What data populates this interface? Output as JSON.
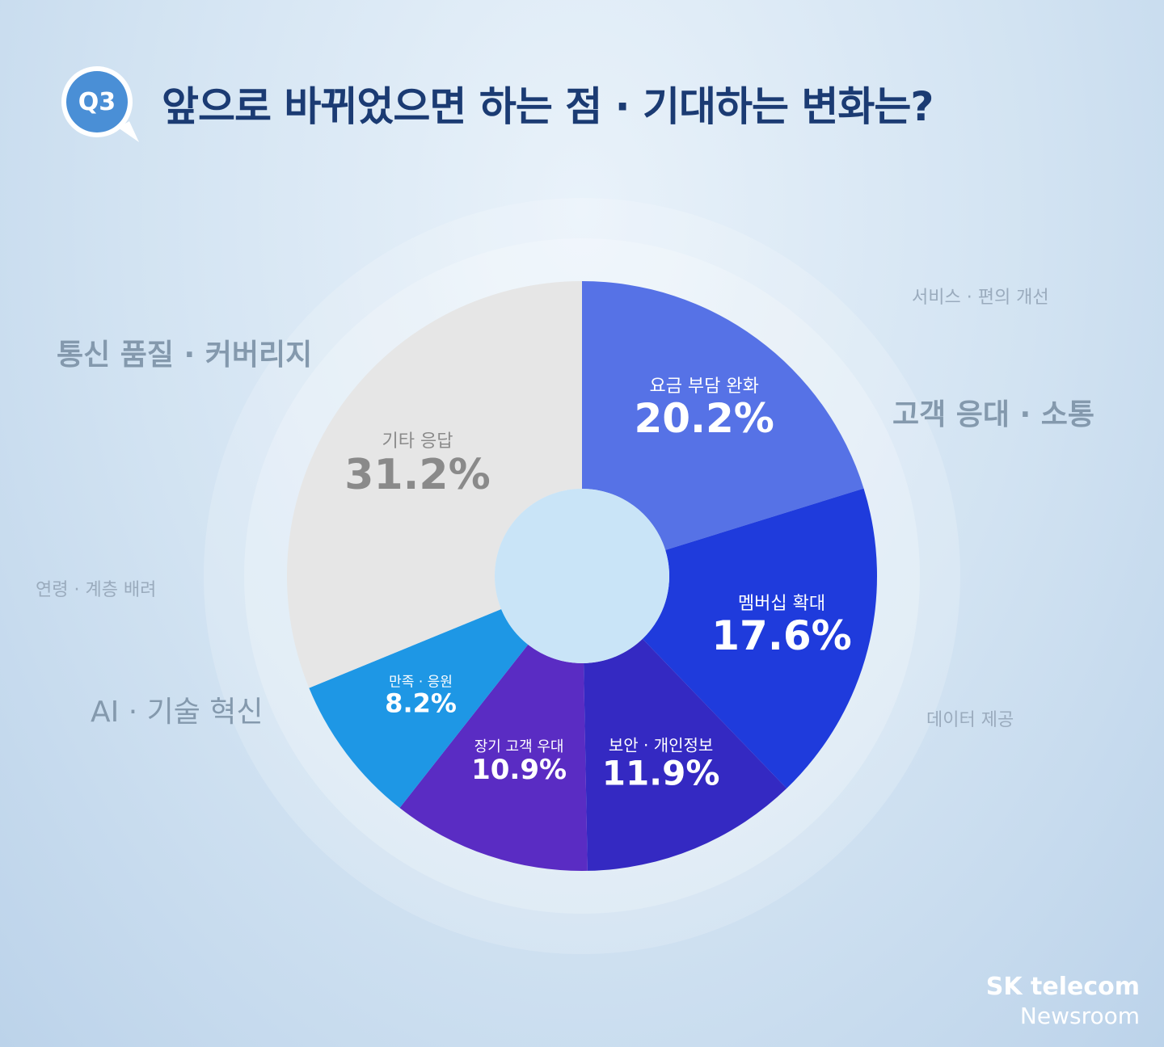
{
  "header": {
    "badge": "Q3",
    "title": "앞으로 바뀌었으면 하는 점 · 기대하는 변화는?"
  },
  "background_keywords": {
    "k1": "통신 품질 · 커버리지",
    "k2": "서비스 · 편의 개선",
    "k3": "고객 응대 · 소통",
    "k4": "연령 · 계층 배려",
    "k5": "AI · 기술 혁신",
    "k6": "데이터 제공"
  },
  "brand": {
    "line1": "SK telecom",
    "line2": "Newsroom"
  },
  "colors": {
    "title": "#1b3b73",
    "badge": "#4a8fd6",
    "center_hole": "#c9e4f7"
  },
  "chart_data": {
    "type": "pie",
    "donut": true,
    "start": "12 o'clock",
    "direction": "clockwise",
    "unit": "%",
    "slices": [
      {
        "label": "요금 부담 완화",
        "value": 20.2,
        "display": "20.2%",
        "color": "#5672e6",
        "text_color": "#ffffff"
      },
      {
        "label": "멤버십 확대",
        "value": 17.6,
        "display": "17.6%",
        "color": "#1f3bdc",
        "text_color": "#ffffff"
      },
      {
        "label": "보안 · 개인정보",
        "value": 11.9,
        "display": "11.9%",
        "color": "#3429c2",
        "text_color": "#ffffff"
      },
      {
        "label": "장기 고객 우대",
        "value": 10.9,
        "display": "10.9%",
        "color": "#5a2cc3",
        "text_color": "#ffffff"
      },
      {
        "label": "만족 · 응원",
        "value": 8.2,
        "display": "8.2%",
        "color": "#1e97e5",
        "text_color": "#ffffff"
      },
      {
        "label": "기타 응답",
        "value": 31.2,
        "display": "31.2%",
        "color": "#e6e6e6",
        "text_color": "#8a8a8a"
      }
    ]
  }
}
